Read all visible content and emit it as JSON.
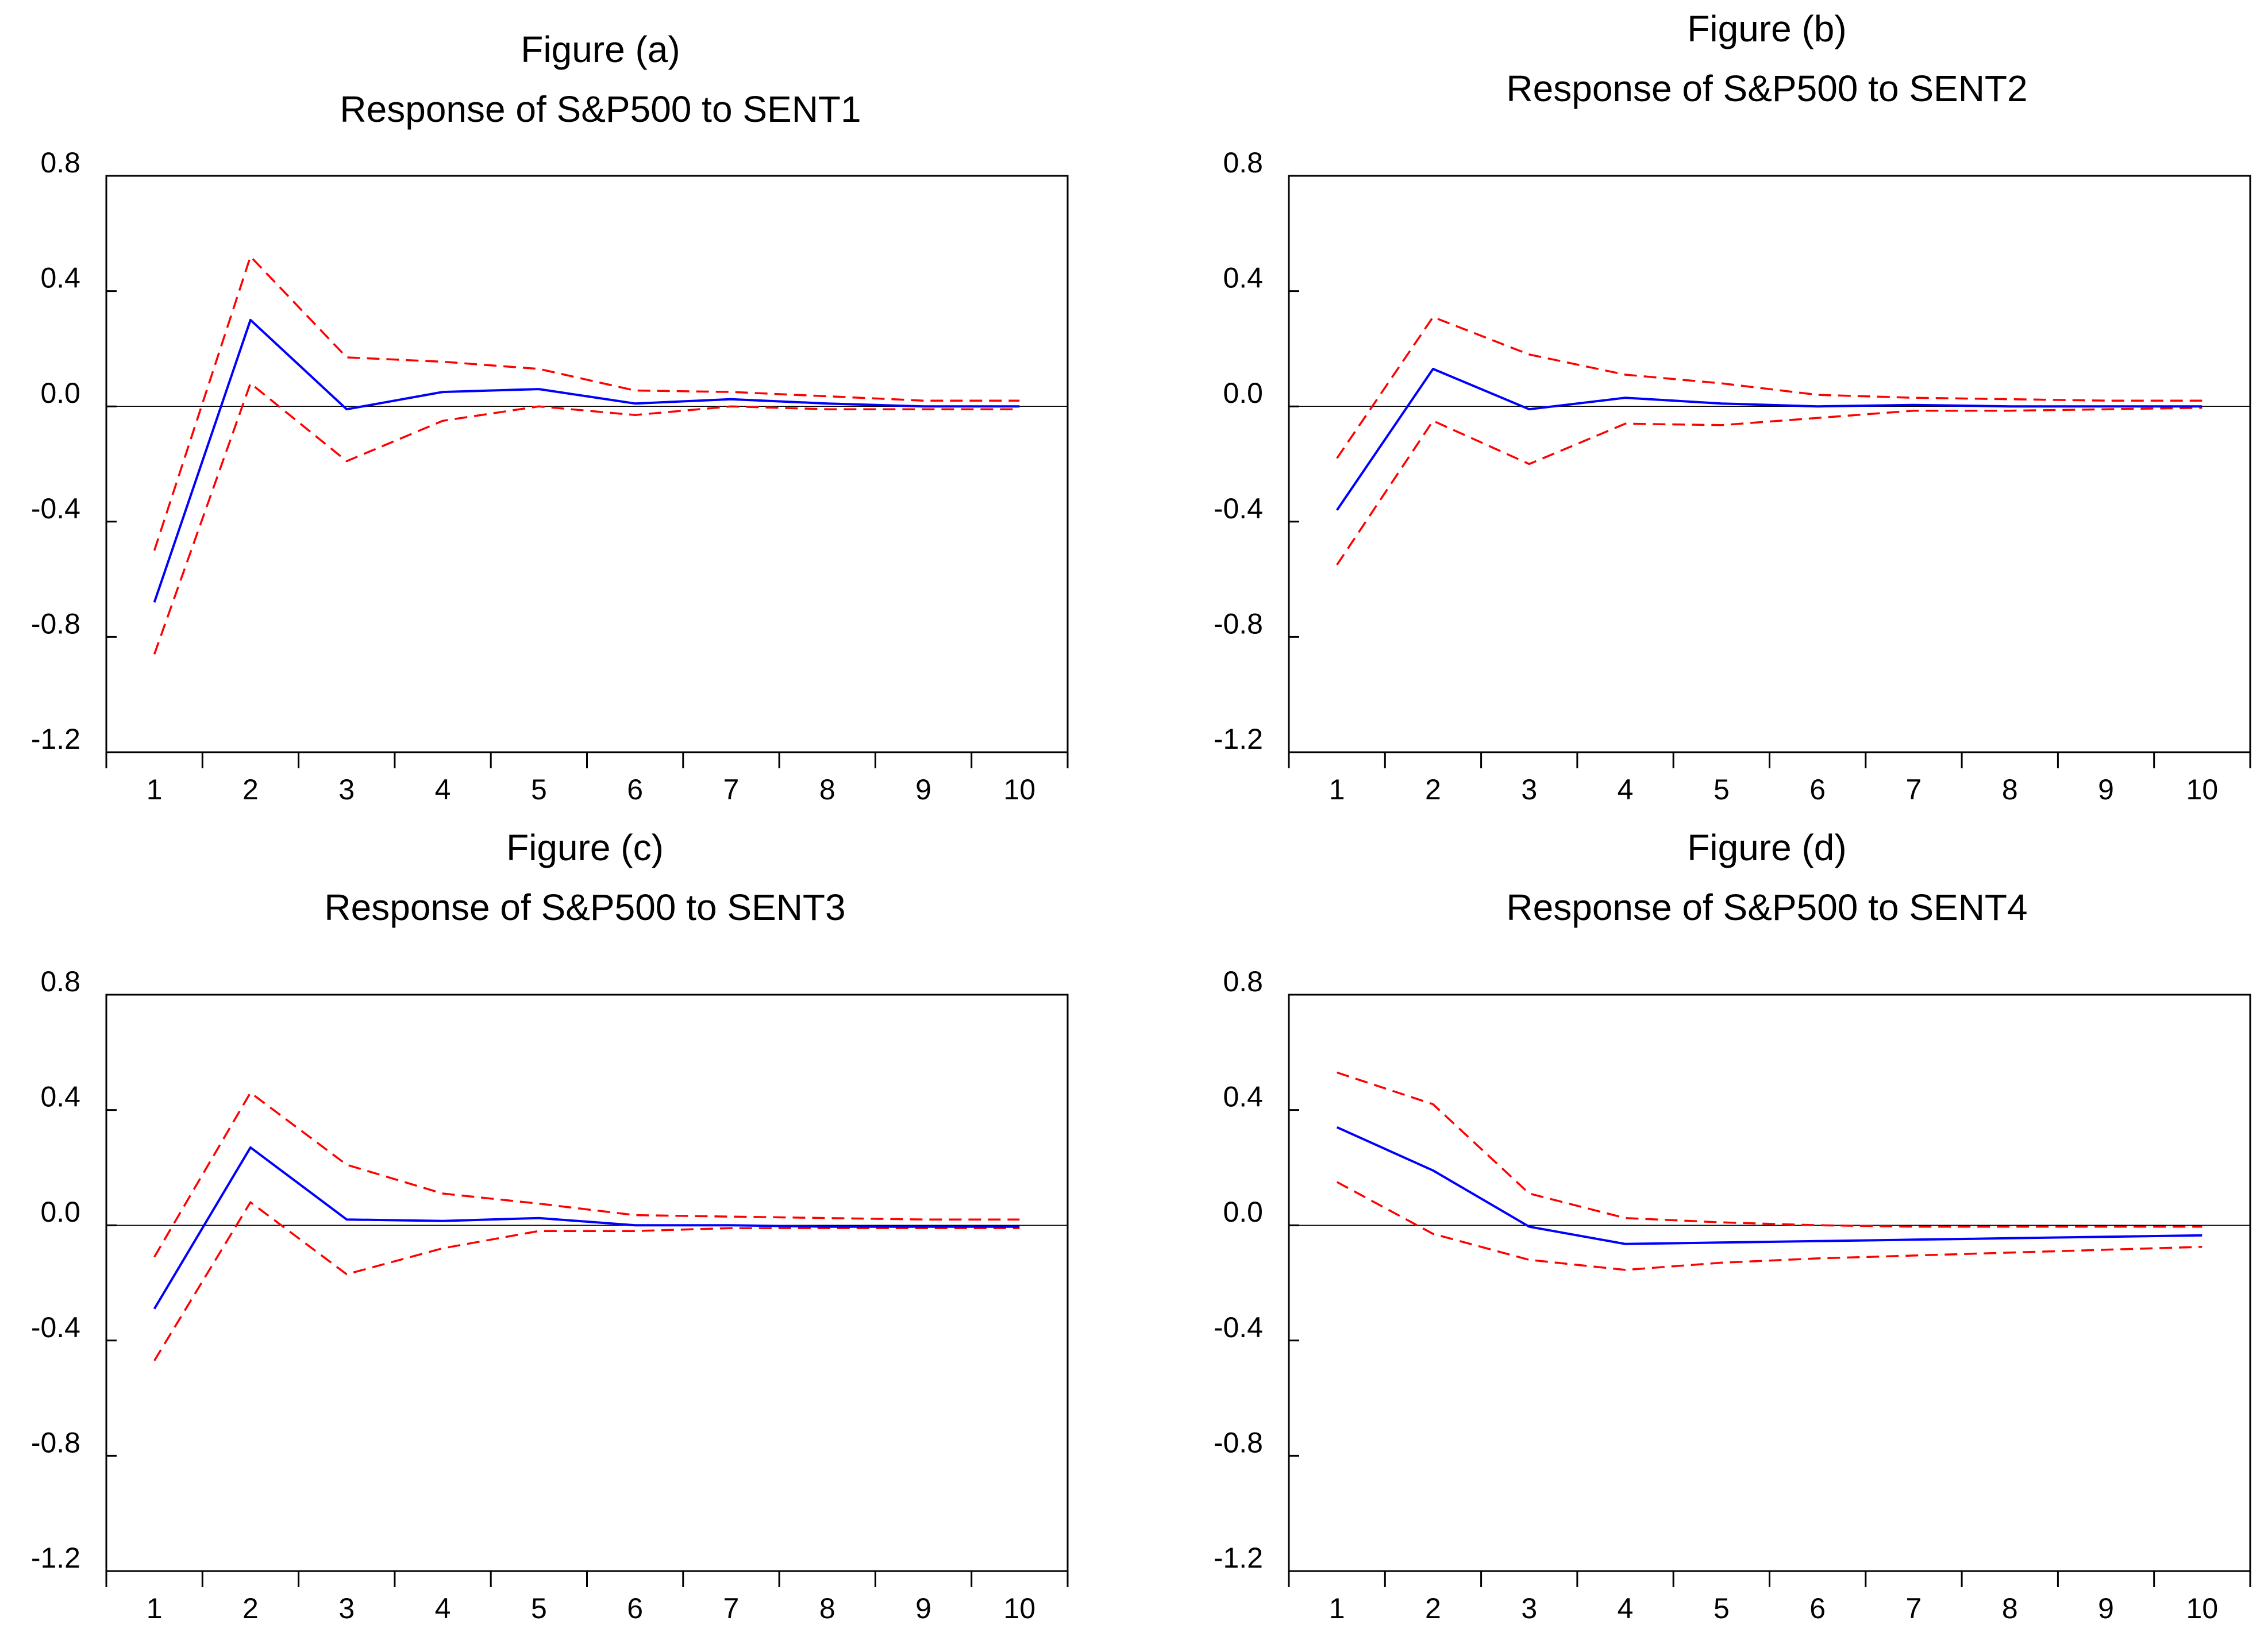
{
  "colors": {
    "impulse": "#0000ff",
    "confidence_band": "#ff0000",
    "axis": "#000000",
    "zero_line": "#000000",
    "background": "#ffffff"
  },
  "chart_data": [
    {
      "type": "line",
      "figure_label": "Figure (a)",
      "title": "Response of S&P500 to SENT1",
      "x": [
        1,
        2,
        3,
        4,
        5,
        6,
        7,
        8,
        9,
        10
      ],
      "xticks": [
        "1",
        "2",
        "3",
        "4",
        "5",
        "6",
        "7",
        "8",
        "9",
        "10"
      ],
      "ylim": [
        -1.2,
        0.8
      ],
      "yticks": [
        "0.8",
        "0.4",
        "0.0",
        "-0.4",
        "-0.8",
        "-1.2"
      ],
      "zero_line": true,
      "series": [
        {
          "name": "Response",
          "style": "solid",
          "color": "#0000ff",
          "values": [
            -0.68,
            0.3,
            -0.01,
            0.05,
            0.06,
            0.01,
            0.025,
            0.01,
            0.0,
            0.0
          ]
        },
        {
          "name": "Upper band",
          "style": "dashed",
          "color": "#ff0000",
          "values": [
            -0.5,
            0.52,
            0.17,
            0.155,
            0.13,
            0.055,
            0.05,
            0.035,
            0.02,
            0.02
          ]
        },
        {
          "name": "Lower band",
          "style": "dashed",
          "color": "#ff0000",
          "values": [
            -0.86,
            0.08,
            -0.19,
            -0.05,
            0.0,
            -0.03,
            0.0,
            -0.01,
            -0.01,
            -0.01
          ]
        }
      ]
    },
    {
      "type": "line",
      "figure_label": "Figure (b)",
      "title": "Response of S&P500 to SENT2",
      "x": [
        1,
        2,
        3,
        4,
        5,
        6,
        7,
        8,
        9,
        10
      ],
      "xticks": [
        "1",
        "2",
        "3",
        "4",
        "5",
        "6",
        "7",
        "8",
        "9",
        "10"
      ],
      "ylim": [
        -1.2,
        0.8
      ],
      "yticks": [
        "0.8",
        "0.4",
        "0.0",
        "-0.4",
        "-0.8",
        "-1.2"
      ],
      "zero_line": true,
      "series": [
        {
          "name": "Response",
          "style": "solid",
          "color": "#0000ff",
          "values": [
            -0.36,
            0.13,
            -0.01,
            0.03,
            0.01,
            0.0,
            0.005,
            0.0,
            0.0,
            0.0
          ]
        },
        {
          "name": "Upper band",
          "style": "dashed",
          "color": "#ff0000",
          "values": [
            -0.18,
            0.31,
            0.18,
            0.11,
            0.08,
            0.04,
            0.03,
            0.025,
            0.02,
            0.02
          ]
        },
        {
          "name": "Lower band",
          "style": "dashed",
          "color": "#ff0000",
          "values": [
            -0.55,
            -0.05,
            -0.2,
            -0.06,
            -0.065,
            -0.04,
            -0.015,
            -0.015,
            -0.01,
            -0.005
          ]
        }
      ]
    },
    {
      "type": "line",
      "figure_label": "Figure (c)",
      "title": "Response of  S&P500 to SENT3",
      "x": [
        1,
        2,
        3,
        4,
        5,
        6,
        7,
        8,
        9,
        10
      ],
      "xticks": [
        "1",
        "2",
        "3",
        "4",
        "5",
        "6",
        "7",
        "8",
        "9",
        "10"
      ],
      "ylim": [
        -1.2,
        0.8
      ],
      "yticks": [
        "0.8",
        "0.4",
        "0.0",
        "-0.4",
        "-0.8",
        "-1.2"
      ],
      "zero_line": true,
      "series": [
        {
          "name": "Response",
          "style": "solid",
          "color": "#0000ff",
          "values": [
            -0.29,
            0.27,
            0.02,
            0.015,
            0.025,
            0.0,
            0.0,
            -0.005,
            -0.005,
            -0.005
          ]
        },
        {
          "name": "Upper band",
          "style": "dashed",
          "color": "#ff0000",
          "values": [
            -0.11,
            0.46,
            0.21,
            0.11,
            0.075,
            0.035,
            0.03,
            0.025,
            0.02,
            0.02
          ]
        },
        {
          "name": "Lower band",
          "style": "dashed",
          "color": "#ff0000",
          "values": [
            -0.47,
            0.08,
            -0.17,
            -0.08,
            -0.02,
            -0.02,
            -0.01,
            -0.01,
            -0.01,
            -0.01
          ]
        }
      ]
    },
    {
      "type": "line",
      "figure_label": "Figure (d)",
      "title": "Response of  S&P500 to SENT4",
      "x": [
        1,
        2,
        3,
        4,
        5,
        6,
        7,
        8,
        9,
        10
      ],
      "xticks": [
        "1",
        "2",
        "3",
        "4",
        "5",
        "6",
        "7",
        "8",
        "9",
        "10"
      ],
      "ylim": [
        -1.2,
        0.8
      ],
      "yticks": [
        "0.8",
        "0.4",
        "0.0",
        "-0.4",
        "-0.8",
        "-1.2"
      ],
      "zero_line": true,
      "series": [
        {
          "name": "Response",
          "style": "solid",
          "color": "#0000ff",
          "values": [
            0.34,
            0.19,
            -0.005,
            -0.065,
            -0.06,
            -0.055,
            -0.05,
            -0.045,
            -0.04,
            -0.035
          ]
        },
        {
          "name": "Upper band",
          "style": "dashed",
          "color": "#ff0000",
          "values": [
            0.53,
            0.42,
            0.11,
            0.025,
            0.01,
            0.0,
            -0.005,
            -0.005,
            -0.005,
            -0.005
          ]
        },
        {
          "name": "Lower band",
          "style": "dashed",
          "color": "#ff0000",
          "values": [
            0.15,
            -0.03,
            -0.12,
            -0.155,
            -0.13,
            -0.115,
            -0.105,
            -0.095,
            -0.085,
            -0.075
          ]
        }
      ]
    }
  ]
}
